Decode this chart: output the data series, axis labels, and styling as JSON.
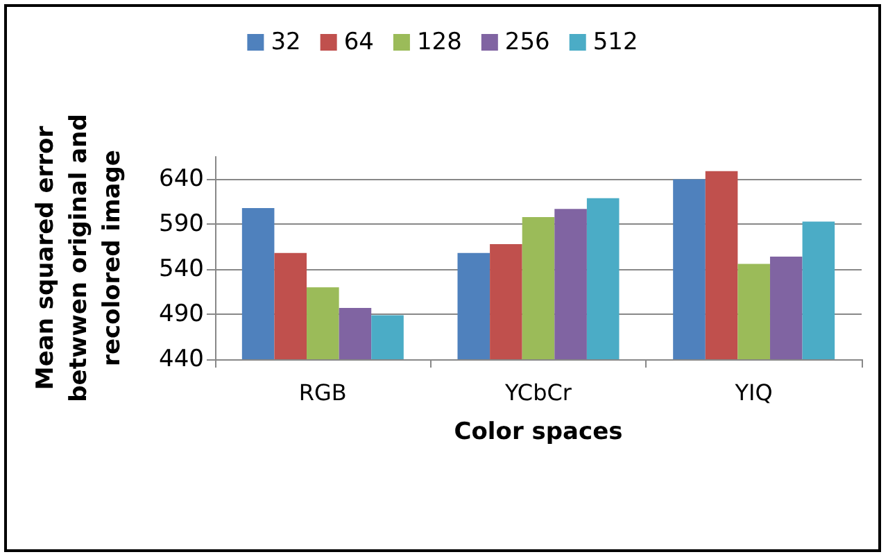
{
  "chart_data": {
    "type": "bar",
    "xlabel": "Color spaces",
    "ylabel": "Mean squared error\nbetwwen original and\nrecolored image",
    "categories": [
      "RGB",
      "YCbCr",
      "YIQ"
    ],
    "series": [
      {
        "name": "32",
        "color": "#4f81bd",
        "values": [
          608,
          558,
          640
        ]
      },
      {
        "name": "64",
        "color": "#c0504d",
        "values": [
          558,
          568,
          649
        ]
      },
      {
        "name": "128",
        "color": "#9bbb59",
        "values": [
          520,
          598,
          546
        ]
      },
      {
        "name": "256",
        "color": "#8064a2",
        "values": [
          497,
          607,
          554
        ]
      },
      {
        "name": "512",
        "color": "#4bacc6",
        "values": [
          489,
          619,
          593
        ]
      }
    ],
    "ylim": [
      440,
      665
    ],
    "yticks": [
      440,
      490,
      540,
      590,
      640
    ],
    "grid": "y",
    "legend": "top"
  }
}
